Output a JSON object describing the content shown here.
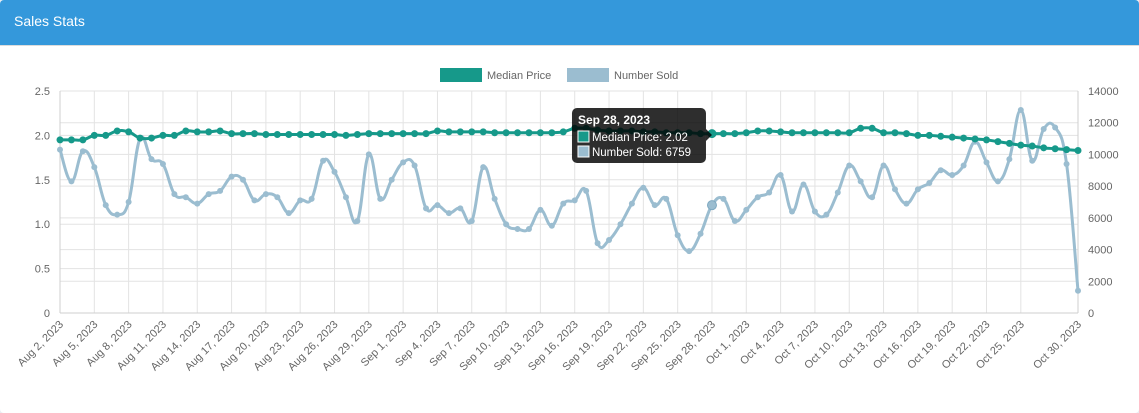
{
  "panel": {
    "title": "Sales Stats"
  },
  "colors": {
    "header": "#3498db",
    "median": "#16998a",
    "sold": "#9bbdd0",
    "grid": "#e3e3e3"
  },
  "chart_data": {
    "type": "line",
    "legend": {
      "position": "top-center",
      "entries": [
        "Median Price",
        "Number Sold"
      ]
    },
    "x": [
      "Aug 2, 2023",
      "Aug 3, 2023",
      "Aug 4, 2023",
      "Aug 5, 2023",
      "Aug 6, 2023",
      "Aug 7, 2023",
      "Aug 8, 2023",
      "Aug 9, 2023",
      "Aug 10, 2023",
      "Aug 11, 2023",
      "Aug 12, 2023",
      "Aug 13, 2023",
      "Aug 14, 2023",
      "Aug 15, 2023",
      "Aug 16, 2023",
      "Aug 17, 2023",
      "Aug 18, 2023",
      "Aug 19, 2023",
      "Aug 20, 2023",
      "Aug 21, 2023",
      "Aug 22, 2023",
      "Aug 23, 2023",
      "Aug 24, 2023",
      "Aug 25, 2023",
      "Aug 26, 2023",
      "Aug 27, 2023",
      "Aug 28, 2023",
      "Aug 29, 2023",
      "Aug 30, 2023",
      "Aug 31, 2023",
      "Sep 1, 2023",
      "Sep 2, 2023",
      "Sep 3, 2023",
      "Sep 4, 2023",
      "Sep 5, 2023",
      "Sep 6, 2023",
      "Sep 7, 2023",
      "Sep 8, 2023",
      "Sep 9, 2023",
      "Sep 10, 2023",
      "Sep 11, 2023",
      "Sep 12, 2023",
      "Sep 13, 2023",
      "Sep 14, 2023",
      "Sep 15, 2023",
      "Sep 16, 2023",
      "Sep 17, 2023",
      "Sep 18, 2023",
      "Sep 19, 2023",
      "Sep 20, 2023",
      "Sep 21, 2023",
      "Sep 22, 2023",
      "Sep 23, 2023",
      "Sep 24, 2023",
      "Sep 25, 2023",
      "Sep 26, 2023",
      "Sep 27, 2023",
      "Sep 28, 2023",
      "Sep 29, 2023",
      "Sep 30, 2023",
      "Oct 1, 2023",
      "Oct 2, 2023",
      "Oct 3, 2023",
      "Oct 4, 2023",
      "Oct 5, 2023",
      "Oct 6, 2023",
      "Oct 7, 2023",
      "Oct 8, 2023",
      "Oct 9, 2023",
      "Oct 10, 2023",
      "Oct 11, 2023",
      "Oct 12, 2023",
      "Oct 13, 2023",
      "Oct 14, 2023",
      "Oct 15, 2023",
      "Oct 16, 2023",
      "Oct 17, 2023",
      "Oct 18, 2023",
      "Oct 19, 2023",
      "Oct 20, 2023",
      "Oct 21, 2023",
      "Oct 22, 2023",
      "Oct 23, 2023",
      "Oct 24, 2023",
      "Oct 25, 2023",
      "Oct 26, 2023",
      "Oct 27, 2023",
      "Oct 28, 2023",
      "Oct 29, 2023",
      "Oct 30, 2023"
    ],
    "xtick_labels": [
      "Aug 2, 2023",
      "Aug 5, 2023",
      "Aug 8, 2023",
      "Aug 11, 2023",
      "Aug 14, 2023",
      "Aug 17, 2023",
      "Aug 20, 2023",
      "Aug 23, 2023",
      "Aug 26, 2023",
      "Aug 29, 2023",
      "Sep 1, 2023",
      "Sep 4, 2023",
      "Sep 7, 2023",
      "Sep 10, 2023",
      "Sep 13, 2023",
      "Sep 16, 2023",
      "Sep 19, 2023",
      "Sep 22, 2023",
      "Sep 25, 2023",
      "Sep 28, 2023",
      "Oct 1, 2023",
      "Oct 4, 2023",
      "Oct 7, 2023",
      "Oct 10, 2023",
      "Oct 13, 2023",
      "Oct 16, 2023",
      "Oct 19, 2023",
      "Oct 22, 2023",
      "Oct 25, 2023",
      "Oct 30, 2023"
    ],
    "y_left": {
      "lim": [
        0,
        2.5
      ],
      "ticks": [
        "0",
        "0.5",
        "1.0",
        "1.5",
        "2.0",
        "2.5"
      ]
    },
    "y_right": {
      "lim": [
        0,
        14000
      ],
      "ticks": [
        "0",
        "2000",
        "4000",
        "6000",
        "8000",
        "10000",
        "12000",
        "14000"
      ]
    },
    "series": [
      {
        "name": "Median Price",
        "axis": "left",
        "values": [
          1.95,
          1.95,
          1.95,
          2.0,
          2.0,
          2.05,
          2.04,
          1.97,
          1.97,
          2.0,
          2.0,
          2.05,
          2.04,
          2.04,
          2.05,
          2.02,
          2.02,
          2.02,
          2.01,
          2.01,
          2.01,
          2.01,
          2.01,
          2.01,
          2.01,
          2.0,
          2.01,
          2.02,
          2.02,
          2.02,
          2.02,
          2.02,
          2.02,
          2.05,
          2.04,
          2.04,
          2.04,
          2.04,
          2.03,
          2.03,
          2.03,
          2.03,
          2.03,
          2.03,
          2.04,
          2.08,
          2.08,
          2.06,
          2.05,
          2.05,
          2.05,
          2.04,
          2.04,
          2.03,
          2.03,
          2.03,
          2.02,
          2.02,
          2.02,
          2.02,
          2.03,
          2.05,
          2.05,
          2.04,
          2.03,
          2.03,
          2.03,
          2.03,
          2.03,
          2.03,
          2.08,
          2.08,
          2.03,
          2.03,
          2.02,
          2.0,
          2.0,
          1.99,
          1.98,
          1.97,
          1.96,
          1.95,
          1.93,
          1.91,
          1.89,
          1.88,
          1.86,
          1.85,
          1.84,
          1.83
        ]
      },
      {
        "name": "Number Sold",
        "axis": "right",
        "values": [
          10300,
          8300,
          10200,
          9200,
          6800,
          6200,
          7000,
          11000,
          9700,
          9400,
          7500,
          7300,
          6900,
          7500,
          7700,
          8600,
          8400,
          7100,
          7500,
          7300,
          6300,
          7100,
          7200,
          9600,
          8900,
          7300,
          5800,
          10000,
          7200,
          8400,
          9500,
          9300,
          6600,
          6800,
          6300,
          6600,
          5800,
          9200,
          7200,
          5600,
          5300,
          5300,
          6500,
          5500,
          6900,
          7100,
          7700,
          4400,
          4600,
          5600,
          6900,
          7900,
          6800,
          7200,
          4900,
          3900,
          5000,
          6800,
          7200,
          5800,
          6500,
          7300,
          7600,
          8700,
          6400,
          8100,
          6400,
          6200,
          7600,
          9300,
          8300,
          7300,
          9300,
          7800,
          6900,
          7800,
          8200,
          9000,
          8700,
          9300,
          10800,
          9500,
          8300,
          9700,
          12800,
          9600,
          11600,
          11700,
          9400,
          1400
        ]
      }
    ],
    "tooltip": {
      "title": "Sep 28, 2023",
      "lines": [
        "Median Price: 2.02",
        "Number Sold: 6759"
      ]
    }
  }
}
